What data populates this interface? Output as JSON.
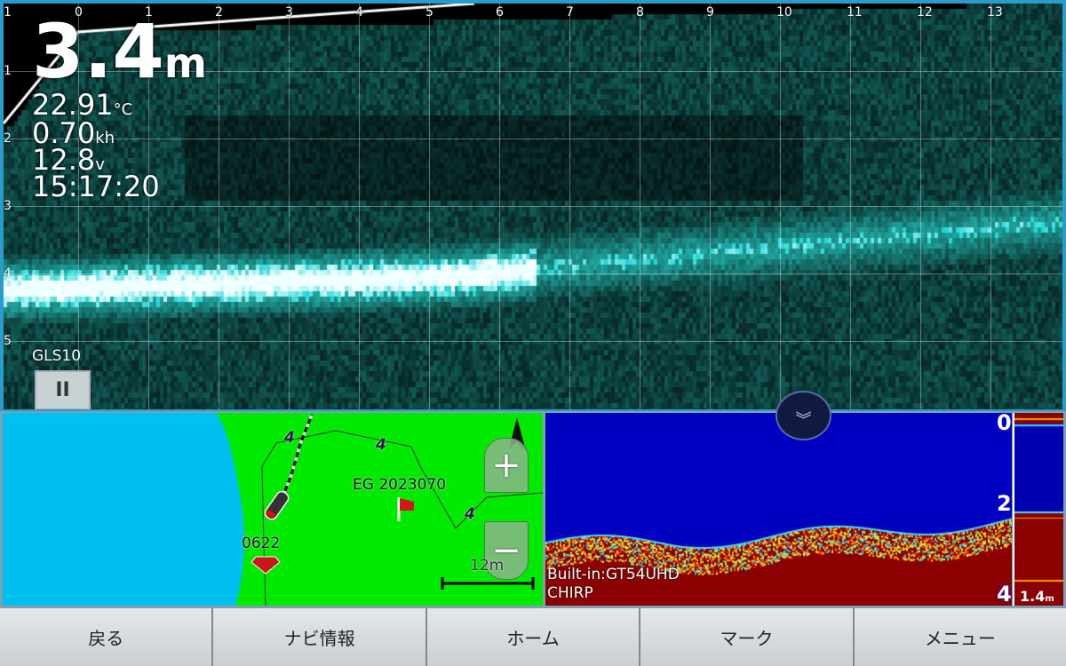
{
  "livescope": {
    "depth": "3.4",
    "depth_unit": "m",
    "water_temp": "22.91",
    "water_temp_unit": "°C",
    "speed": "0.70",
    "speed_unit": "kh",
    "voltage": "12.8",
    "voltage_unit": "v",
    "time": "15:17:20",
    "source": "GLS10",
    "pause_icon": "pause-icon",
    "x_scale": [
      "1",
      "0",
      "1",
      "2",
      "3",
      "4",
      "5",
      "6",
      "7",
      "8",
      "9",
      "10",
      "11",
      "12",
      "13"
    ],
    "y_scale": [
      "1",
      "2",
      "3",
      "4",
      "5"
    ],
    "colors": {
      "echo": "#3fd8c8",
      "background": "#0b2a2a"
    }
  },
  "map": {
    "waypoint_label": "EG 2023070",
    "waypoint_icon": "flag-icon",
    "mark_label": "0622",
    "mark_icon": "diamond-icon",
    "contour_labels": [
      "4",
      "4",
      "4"
    ],
    "scale_label": "12m",
    "zoom_in": "+",
    "zoom_out": "−",
    "colors": {
      "land": "#00ea00",
      "water": "#00c0f0"
    }
  },
  "sonar": {
    "source": "Built-in:GT54UHD",
    "mode": "CHIRP",
    "depth_scale": [
      "0",
      "2",
      "4"
    ],
    "ascope_depth": "1.4",
    "ascope_unit": "m",
    "collapse_icon": "double-chevron-down-icon",
    "colors": {
      "water": "#0000c0",
      "bottom": "#8b0000"
    }
  },
  "bottom_bar": {
    "buttons": [
      "戻る",
      "ナビ情報",
      "ホーム",
      "マーク",
      "メニュー"
    ]
  }
}
